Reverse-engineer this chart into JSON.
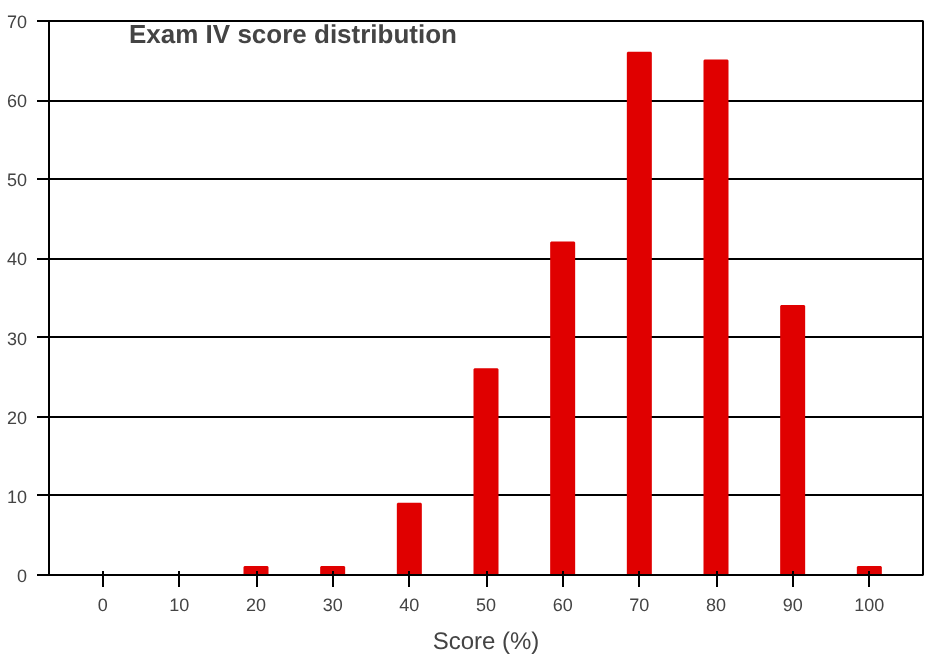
{
  "chart_data": {
    "type": "bar",
    "title": "Exam IV score distribution",
    "xlabel": "Score (%)",
    "categories": [
      "0",
      "10",
      "20",
      "30",
      "40",
      "50",
      "60",
      "70",
      "80",
      "90",
      "100"
    ],
    "values": [
      0,
      0,
      1,
      1,
      9,
      26,
      42,
      66,
      65,
      34,
      1
    ],
    "color": "#e00000",
    "ylim": [
      0,
      70
    ],
    "yticks": [
      0,
      10,
      20,
      30,
      40,
      50,
      60,
      70
    ],
    "grid": "y"
  }
}
